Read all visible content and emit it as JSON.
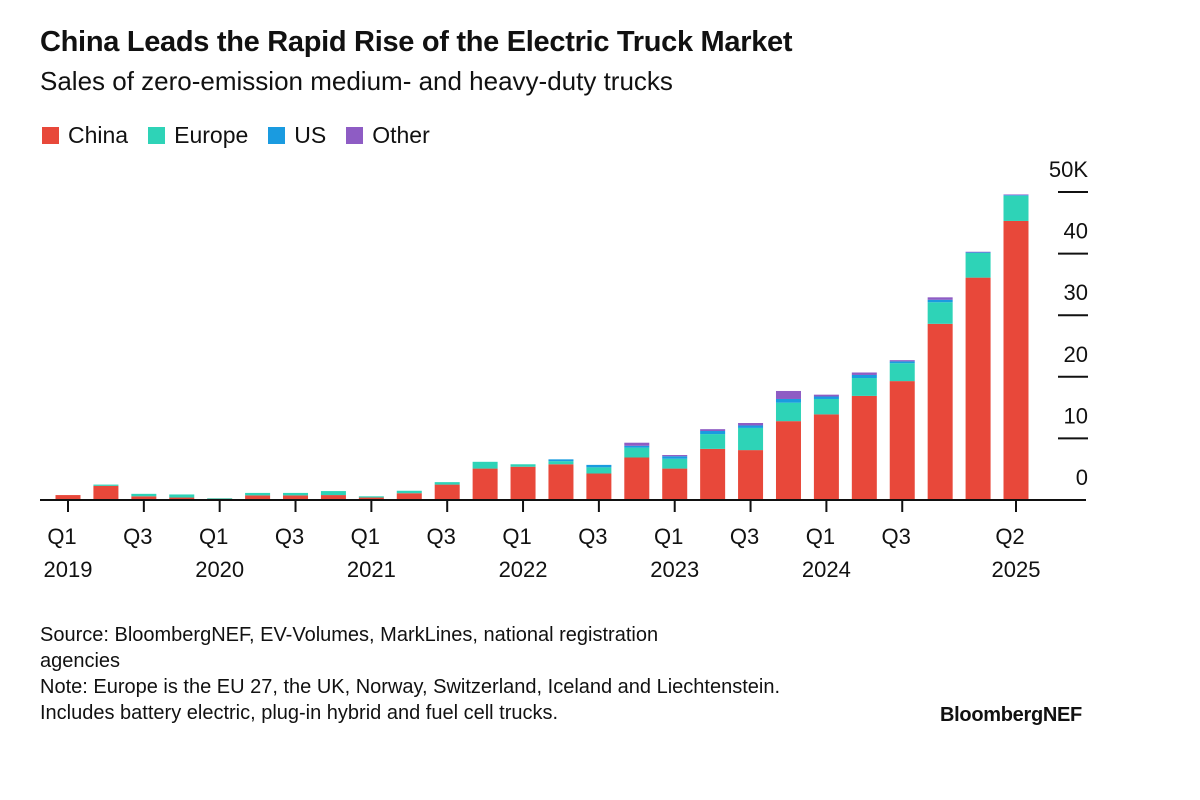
{
  "header": {
    "title": "China Leads the Rapid Rise of the Electric Truck Market",
    "subtitle": "Sales of zero-emission medium- and heavy-duty trucks"
  },
  "chart_data": {
    "type": "bar",
    "stacked": true,
    "categories": [
      "Q1 2019",
      "Q2 2019",
      "Q3 2019",
      "Q4 2019",
      "Q1 2020",
      "Q2 2020",
      "Q3 2020",
      "Q4 2020",
      "Q1 2021",
      "Q2 2021",
      "Q3 2021",
      "Q4 2021",
      "Q1 2022",
      "Q2 2022",
      "Q3 2022",
      "Q4 2022",
      "Q1 2023",
      "Q2 2023",
      "Q3 2023",
      "Q4 2023",
      "Q1 2024",
      "Q2 2024",
      "Q3 2024",
      "Q4 2024",
      "Q1 2025",
      "Q2 2025"
    ],
    "series": [
      {
        "name": "China",
        "color": "#e8483a",
        "values": [
          0.8,
          2.3,
          0.6,
          0.4,
          0.2,
          0.75,
          0.75,
          0.8,
          0.4,
          1.1,
          2.5,
          5.1,
          5.4,
          5.8,
          4.3,
          6.9,
          5.1,
          8.3,
          8.1,
          12.8,
          13.9,
          16.9,
          19.3,
          28.6,
          36.1,
          45.3
        ]
      },
      {
        "name": "Europe",
        "color": "#2ed3b7",
        "values": [
          0,
          0.2,
          0.4,
          0.5,
          0.1,
          0.4,
          0.4,
          0.65,
          0.2,
          0.4,
          0.4,
          1.1,
          0.4,
          0.5,
          1.0,
          1.6,
          1.6,
          2.4,
          3.6,
          3.0,
          2.5,
          2.9,
          2.9,
          3.5,
          4.0,
          4.1
        ]
      },
      {
        "name": "US",
        "color": "#1a9be0",
        "values": [
          0,
          0,
          0,
          0,
          0,
          0,
          0,
          0,
          0,
          0,
          0,
          0,
          0,
          0.3,
          0.4,
          0.3,
          0.4,
          0.5,
          0.4,
          0.6,
          0.4,
          0.5,
          0.3,
          0.4,
          0.1,
          0.1
        ]
      },
      {
        "name": "Other",
        "color": "#8e5cc4",
        "values": [
          0,
          0,
          0,
          0,
          0,
          0,
          0,
          0,
          0,
          0,
          0,
          0,
          0,
          0,
          0,
          0.5,
          0.2,
          0.3,
          0.4,
          1.3,
          0.3,
          0.4,
          0.2,
          0.4,
          0.1,
          0.1
        ]
      }
    ],
    "ylim": [
      0,
      50
    ],
    "y_ticks": [
      {
        "value": 0,
        "label": "0"
      },
      {
        "value": 10,
        "label": "10"
      },
      {
        "value": 20,
        "label": "20"
      },
      {
        "value": 30,
        "label": "30"
      },
      {
        "value": 40,
        "label": "40"
      },
      {
        "value": 50,
        "label": "50K"
      }
    ],
    "x_ticks": [
      {
        "index": 0,
        "q": "Q1",
        "year": "2019"
      },
      {
        "index": 2,
        "q": "Q3",
        "year": ""
      },
      {
        "index": 4,
        "q": "Q1",
        "year": "2020"
      },
      {
        "index": 6,
        "q": "Q3",
        "year": ""
      },
      {
        "index": 8,
        "q": "Q1",
        "year": "2021"
      },
      {
        "index": 10,
        "q": "Q3",
        "year": ""
      },
      {
        "index": 12,
        "q": "Q1",
        "year": "2022"
      },
      {
        "index": 14,
        "q": "Q3",
        "year": ""
      },
      {
        "index": 16,
        "q": "Q1",
        "year": "2023"
      },
      {
        "index": 18,
        "q": "Q3",
        "year": ""
      },
      {
        "index": 20,
        "q": "Q1",
        "year": "2024"
      },
      {
        "index": 22,
        "q": "Q3",
        "year": ""
      },
      {
        "index": 25,
        "q": "Q2",
        "year": "2025"
      }
    ],
    "y_axis_side": "right",
    "legend_position": "top-left",
    "grid": false
  },
  "footer": {
    "source": "Source: BloombergNEF, EV-Volumes, MarkLines, national registration agencies",
    "note": "Note: Europe is the EU 27, the UK, Norway, Switzerland, Iceland and Liechtenstein. Includes battery electric, plug-in hybrid and fuel cell trucks.",
    "brand": "BloombergNEF"
  }
}
